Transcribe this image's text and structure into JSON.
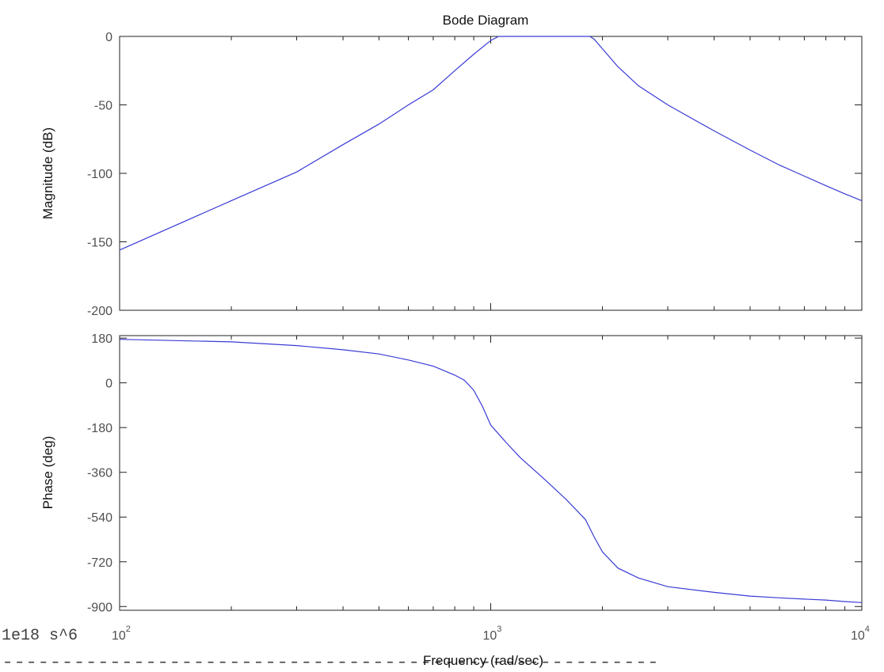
{
  "chart_data": [
    {
      "type": "line",
      "title": "Bode Diagram",
      "xlabel": "",
      "ylabel": "Magnitude (dB)",
      "xscale": "log",
      "xlim": [
        100,
        10000
      ],
      "ylim": [
        -200,
        0
      ],
      "yticks": [
        0,
        -50,
        -100,
        -150,
        -200
      ],
      "ytick_labels": [
        "0",
        "-50",
        "-100",
        "-150",
        "-200"
      ],
      "grid": false,
      "line_color": "#3b3bd6",
      "series": [
        {
          "x": [
            100,
            200,
            300,
            400,
            500,
            600,
            700,
            800,
            900,
            1000,
            1050,
            1100,
            1200,
            1300,
            1500,
            1700,
            1850,
            1900,
            2000,
            2200,
            2500,
            3000,
            4000,
            5000,
            6000,
            7000,
            8000,
            9000,
            10000
          ],
          "y": [
            -156,
            -120,
            -99,
            -79,
            -64,
            -50,
            -39,
            -25,
            -13,
            -3,
            0,
            0,
            0,
            0,
            0,
            0,
            0,
            -2,
            -9,
            -22,
            -36,
            -50,
            -69,
            -83,
            -94,
            -102,
            -109,
            -115,
            -120
          ]
        }
      ]
    },
    {
      "type": "line",
      "title": "",
      "xlabel": "Frequency (rad/sec)",
      "ylabel": "Phase (deg)",
      "xscale": "log",
      "xlim": [
        100,
        10000
      ],
      "ylim": [
        -915,
        190
      ],
      "yticks": [
        180,
        0,
        -180,
        -360,
        -540,
        -720,
        -900
      ],
      "ytick_labels": [
        "180",
        "0",
        "-180",
        "-360",
        "-540",
        "-720",
        "-900"
      ],
      "xticks": [
        100,
        1000,
        10000
      ],
      "xtick_labels": [
        {
          "base": "10",
          "exp": "2"
        },
        {
          "base": "10",
          "exp": "3"
        },
        {
          "base": "10",
          "exp": "4"
        }
      ],
      "grid": false,
      "line_color": "#3b3bd6",
      "series": [
        {
          "x": [
            100,
            200,
            300,
            400,
            500,
            600,
            700,
            800,
            850,
            900,
            950,
            1000,
            1100,
            1200,
            1400,
            1600,
            1800,
            1900,
            2000,
            2200,
            2500,
            3000,
            4000,
            5000,
            6000,
            7000,
            8000,
            9000,
            10000
          ],
          "y": [
            175,
            165,
            150,
            133,
            116,
            92,
            67,
            31,
            10,
            -30,
            -95,
            -170,
            -240,
            -300,
            -390,
            -470,
            -550,
            -620,
            -680,
            -745,
            -785,
            -820,
            -843,
            -858,
            -865,
            -870,
            -874,
            -880,
            -884
          ]
        }
      ]
    }
  ],
  "console": {
    "numerator_text": "1e18 s^6",
    "divider_text": "-------------------------------------------------------"
  }
}
